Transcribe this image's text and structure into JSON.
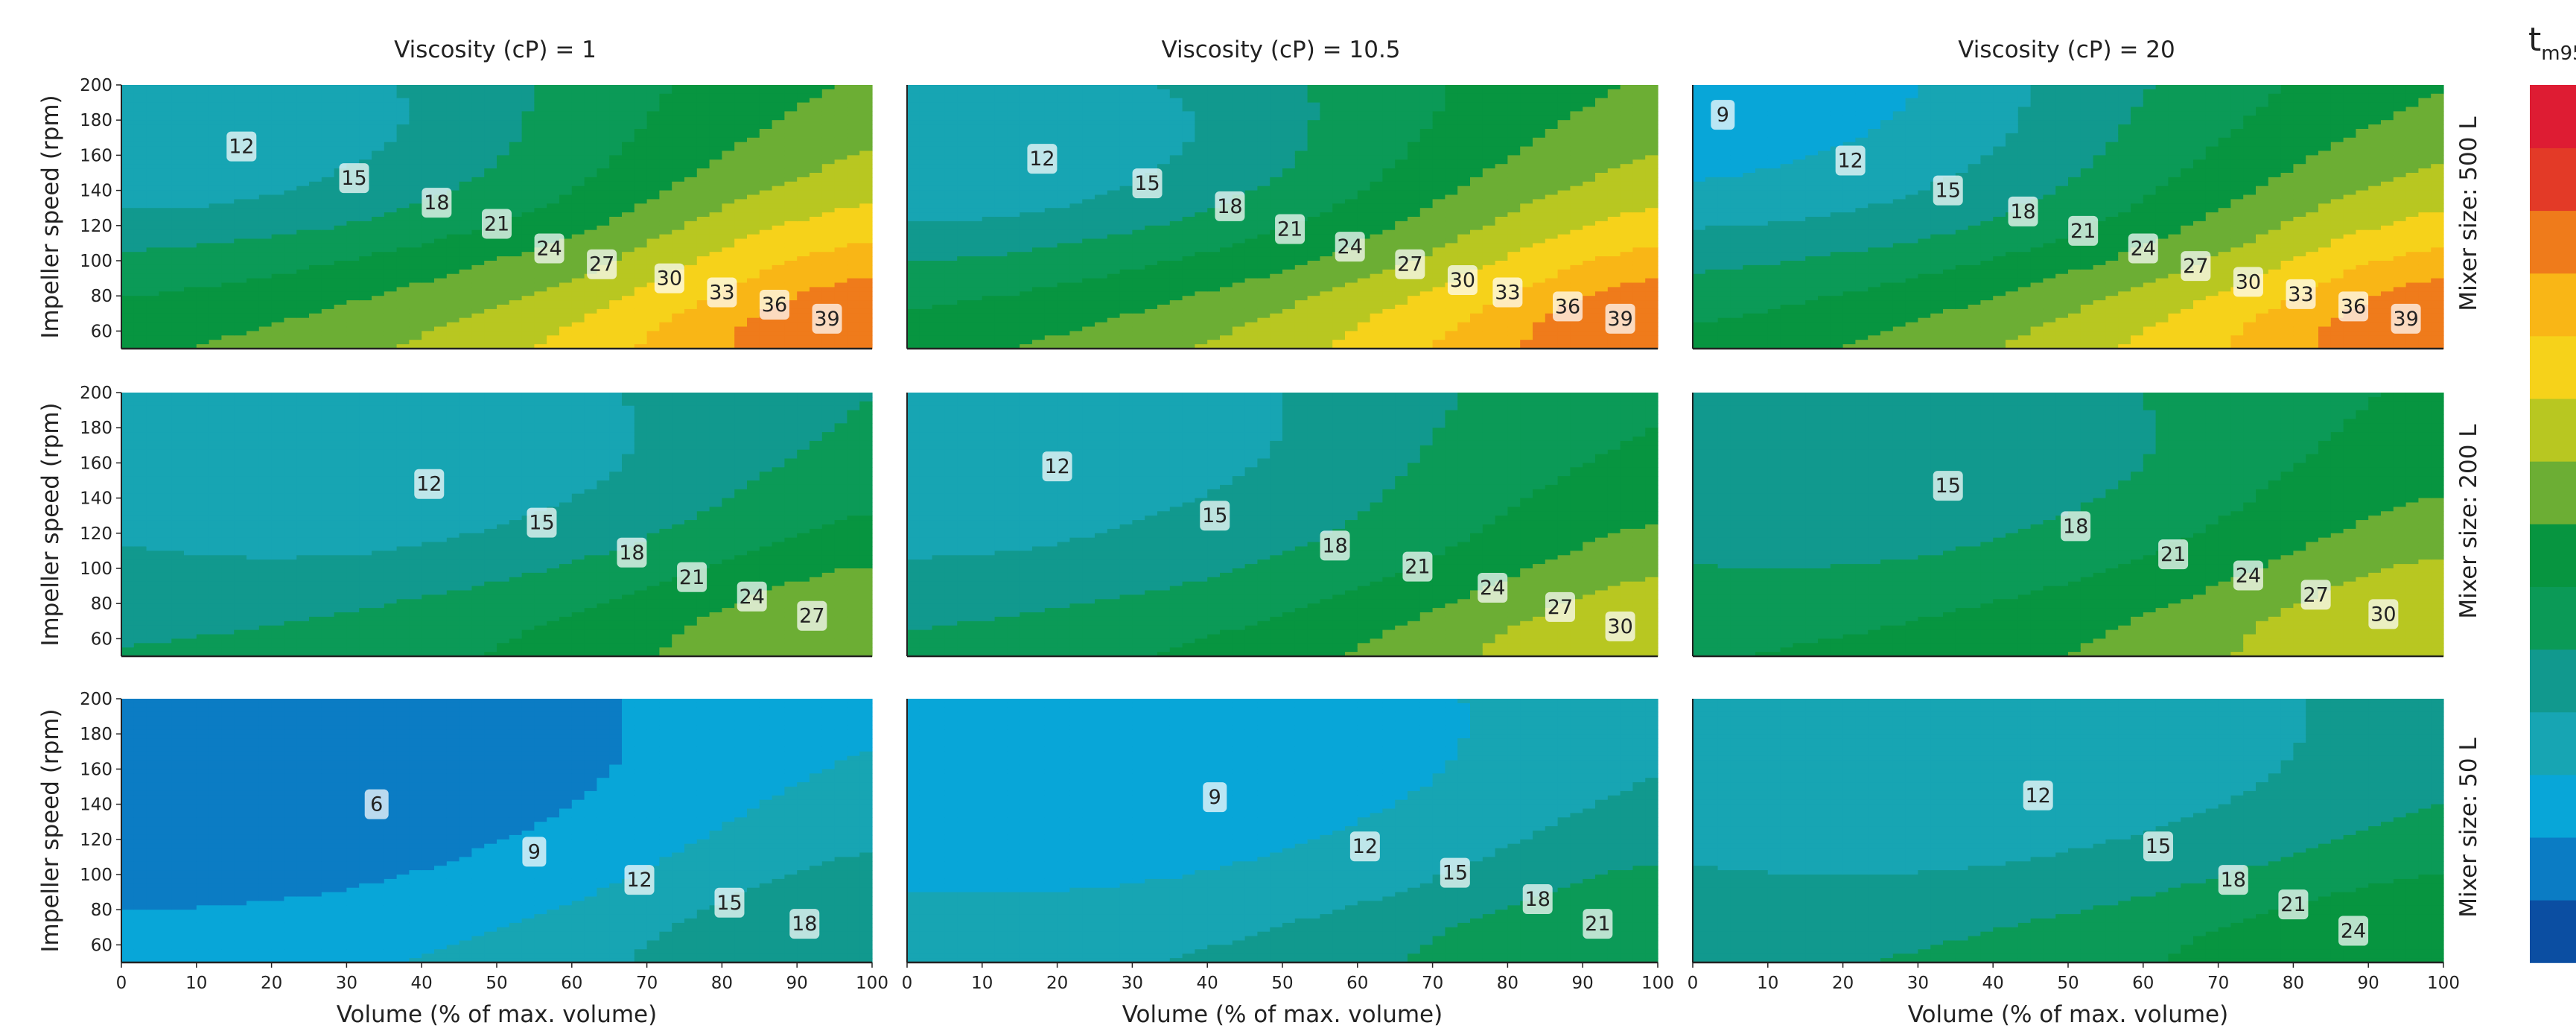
{
  "colorbar": {
    "title_main": "t",
    "title_sub": "m95",
    "colors": [
      "#0b4ea2",
      "#0b7cc4",
      "#08a6d8",
      "#17a5b3",
      "#11998e",
      "#0b9a57",
      "#079540",
      "#6cae34",
      "#b8c721",
      "#f6d21a",
      "#f9b616",
      "#ef7b1b",
      "#e33a27",
      "#de1c33"
    ]
  },
  "col_titles": [
    "Viscosity (cP) = 1",
    "Viscosity (cP) = 10.5",
    "Viscosity (cP) = 20"
  ],
  "row_titles": [
    "Mixer size: 500 L",
    "Mixer size: 200 L",
    "Mixer size: 50 L"
  ],
  "chart_data": {
    "type": "contour",
    "xlabel": "Volume (% of max. volume)",
    "ylabel": "Impeller speed (rpm)",
    "xlim": [
      0,
      100
    ],
    "ylim": [
      50,
      200
    ],
    "xticks": [
      "0",
      "10",
      "20",
      "30",
      "40",
      "50",
      "60",
      "70",
      "80",
      "90",
      "100"
    ],
    "yticks": [
      "60",
      "80",
      "100",
      "120",
      "140",
      "160",
      "180",
      "200"
    ],
    "contour_levels": [
      3,
      6,
      9,
      12,
      15,
      18,
      21,
      24,
      27,
      30,
      33,
      36,
      39,
      42,
      45
    ],
    "panels": [
      {
        "mixer": "500 L",
        "viscosity": 1,
        "labels": [
          {
            "text": "12",
            "x": 16,
            "y": 165
          },
          {
            "text": "15",
            "x": 31,
            "y": 147
          },
          {
            "text": "18",
            "x": 42,
            "y": 133
          },
          {
            "text": "21",
            "x": 50,
            "y": 121
          },
          {
            "text": "24",
            "x": 57,
            "y": 107
          },
          {
            "text": "27",
            "x": 64,
            "y": 98
          },
          {
            "text": "30",
            "x": 73,
            "y": 90
          },
          {
            "text": "33",
            "x": 80,
            "y": 82
          },
          {
            "text": "36",
            "x": 87,
            "y": 75
          },
          {
            "text": "39",
            "x": 94,
            "y": 67
          }
        ]
      },
      {
        "mixer": "500 L",
        "viscosity": 10.5,
        "labels": [
          {
            "text": "12",
            "x": 18,
            "y": 158
          },
          {
            "text": "15",
            "x": 32,
            "y": 144
          },
          {
            "text": "18",
            "x": 43,
            "y": 131
          },
          {
            "text": "21",
            "x": 51,
            "y": 118
          },
          {
            "text": "24",
            "x": 59,
            "y": 108
          },
          {
            "text": "27",
            "x": 67,
            "y": 98
          },
          {
            "text": "30",
            "x": 74,
            "y": 89
          },
          {
            "text": "33",
            "x": 80,
            "y": 82
          },
          {
            "text": "36",
            "x": 88,
            "y": 74
          },
          {
            "text": "39",
            "x": 95,
            "y": 67
          }
        ]
      },
      {
        "mixer": "500 L",
        "viscosity": 20,
        "labels": [
          {
            "text": "9",
            "x": 4,
            "y": 183
          },
          {
            "text": "12",
            "x": 21,
            "y": 157
          },
          {
            "text": "15",
            "x": 34,
            "y": 140
          },
          {
            "text": "18",
            "x": 44,
            "y": 128
          },
          {
            "text": "21",
            "x": 52,
            "y": 117
          },
          {
            "text": "24",
            "x": 60,
            "y": 107
          },
          {
            "text": "27",
            "x": 67,
            "y": 97
          },
          {
            "text": "30",
            "x": 74,
            "y": 88
          },
          {
            "text": "33",
            "x": 81,
            "y": 81
          },
          {
            "text": "36",
            "x": 88,
            "y": 74
          },
          {
            "text": "39",
            "x": 95,
            "y": 67
          }
        ]
      },
      {
        "mixer": "200 L",
        "viscosity": 1,
        "labels": [
          {
            "text": "12",
            "x": 41,
            "y": 148
          },
          {
            "text": "15",
            "x": 56,
            "y": 126
          },
          {
            "text": "18",
            "x": 68,
            "y": 109
          },
          {
            "text": "21",
            "x": 76,
            "y": 95
          },
          {
            "text": "24",
            "x": 84,
            "y": 84
          },
          {
            "text": "27",
            "x": 92,
            "y": 73
          }
        ]
      },
      {
        "mixer": "200 L",
        "viscosity": 10.5,
        "labels": [
          {
            "text": "12",
            "x": 20,
            "y": 158
          },
          {
            "text": "15",
            "x": 41,
            "y": 130
          },
          {
            "text": "18",
            "x": 57,
            "y": 113
          },
          {
            "text": "21",
            "x": 68,
            "y": 101
          },
          {
            "text": "24",
            "x": 78,
            "y": 89
          },
          {
            "text": "27",
            "x": 87,
            "y": 78
          },
          {
            "text": "30",
            "x": 95,
            "y": 67
          }
        ]
      },
      {
        "mixer": "200 L",
        "viscosity": 20,
        "labels": [
          {
            "text": "15",
            "x": 34,
            "y": 147
          },
          {
            "text": "18",
            "x": 51,
            "y": 124
          },
          {
            "text": "21",
            "x": 64,
            "y": 108
          },
          {
            "text": "24",
            "x": 74,
            "y": 96
          },
          {
            "text": "27",
            "x": 83,
            "y": 85
          },
          {
            "text": "30",
            "x": 92,
            "y": 74
          }
        ]
      },
      {
        "mixer": "50 L",
        "viscosity": 1,
        "labels": [
          {
            "text": "6",
            "x": 34,
            "y": 140
          },
          {
            "text": "9",
            "x": 55,
            "y": 113
          },
          {
            "text": "12",
            "x": 69,
            "y": 97
          },
          {
            "text": "15",
            "x": 81,
            "y": 84
          },
          {
            "text": "18",
            "x": 91,
            "y": 72
          }
        ]
      },
      {
        "mixer": "50 L",
        "viscosity": 10.5,
        "labels": [
          {
            "text": "9",
            "x": 41,
            "y": 144
          },
          {
            "text": "12",
            "x": 61,
            "y": 116
          },
          {
            "text": "15",
            "x": 73,
            "y": 101
          },
          {
            "text": "18",
            "x": 84,
            "y": 86
          },
          {
            "text": "21",
            "x": 92,
            "y": 72
          }
        ]
      },
      {
        "mixer": "50 L",
        "viscosity": 20,
        "labels": [
          {
            "text": "12",
            "x": 46,
            "y": 145
          },
          {
            "text": "15",
            "x": 62,
            "y": 116
          },
          {
            "text": "18",
            "x": 72,
            "y": 97
          },
          {
            "text": "21",
            "x": 80,
            "y": 83
          },
          {
            "text": "24",
            "x": 88,
            "y": 68
          }
        ]
      }
    ]
  }
}
